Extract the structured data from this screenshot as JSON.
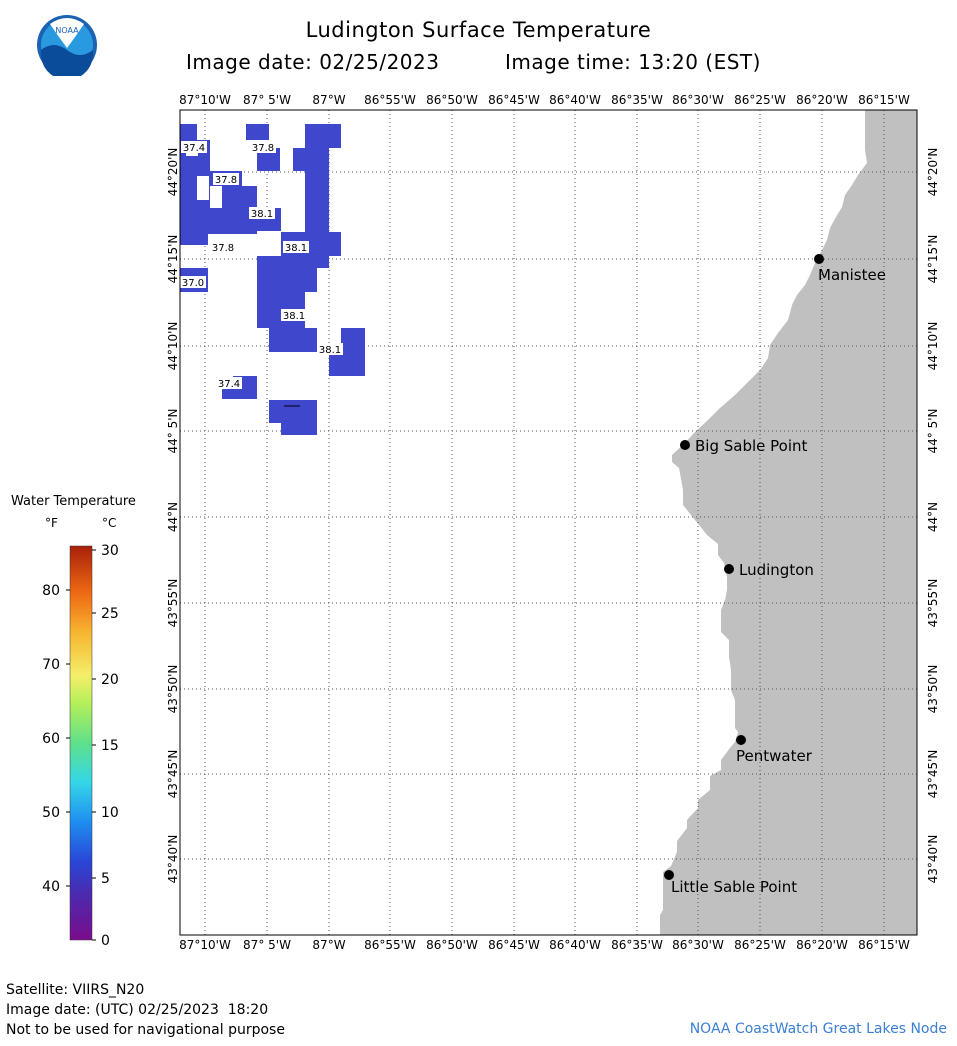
{
  "header": {
    "title": "Ludington Surface Temperature",
    "image_date": "Image date: 02/25/2023",
    "image_time": "Image time: 13:20 (EST)",
    "logo_text": "NOAA"
  },
  "axes": {
    "lon_labels": [
      "87°10'W",
      "87° 5'W",
      "87°W",
      "86°55'W",
      "86°50'W",
      "86°45'W",
      "86°40'W",
      "86°35'W",
      "86°30'W",
      "86°25'W",
      "86°20'W",
      "86°15'W"
    ],
    "lat_labels": [
      "44°20'N",
      "44°15'N",
      "44°10'N",
      "44° 5'N",
      "44°N",
      "43°55'N",
      "43°50'N",
      "43°45'N",
      "43°40'N"
    ]
  },
  "cities": [
    {
      "name": "Manistee"
    },
    {
      "name": "Big Sable Point"
    },
    {
      "name": "Ludington"
    },
    {
      "name": "Pentwater"
    },
    {
      "name": "Little Sable Point"
    }
  ],
  "temp_labels": [
    "37.4",
    "37.8",
    "37.8",
    "38.1",
    "37.8",
    "38.1",
    "37.0",
    "38.1",
    "38.1",
    "37.4"
  ],
  "legend": {
    "title": "Water Temperature",
    "f_unit": "°F",
    "c_unit": "°C",
    "f_ticks": [
      "80",
      "70",
      "60",
      "50",
      "40"
    ],
    "c_ticks": [
      "30",
      "25",
      "20",
      "15",
      "10",
      "5",
      "0"
    ]
  },
  "footer": {
    "satellite": "Satellite: VIIRS_N20",
    "utc_date": "Image date: (UTC) 02/25/2023  18:20",
    "disclaimer": "Not to be used for navigational purpose",
    "credit": "NOAA CoastWatch Great Lakes Node"
  },
  "colors": {
    "water_temp": "#3f47cc",
    "land": "#c0c0c0",
    "grid": "#555555"
  }
}
